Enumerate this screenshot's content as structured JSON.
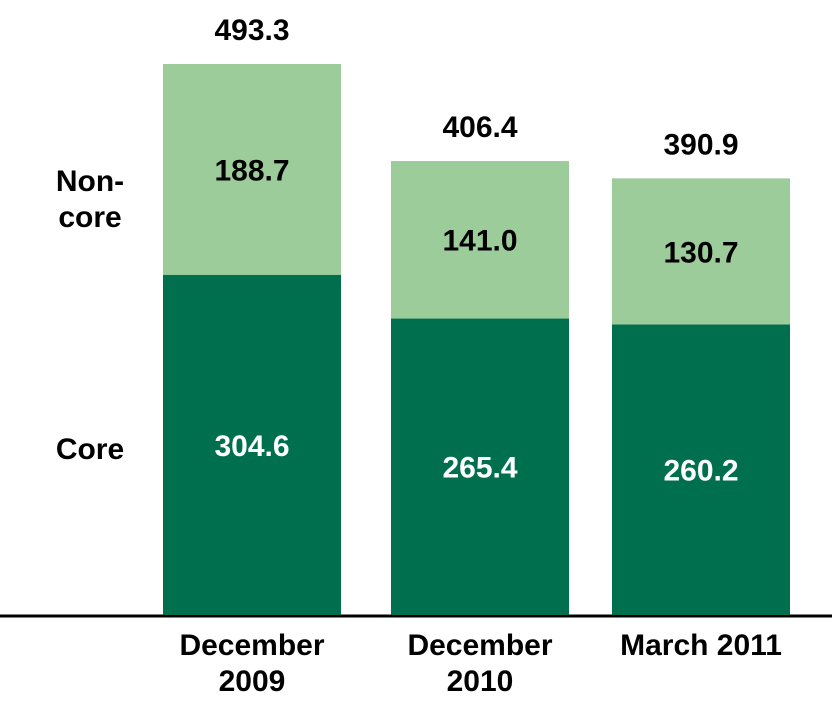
{
  "chart_data": {
    "type": "stacked_bar",
    "categories": [
      "December 2009",
      "December 2010",
      "March 2011"
    ],
    "series": [
      {
        "name": "Core",
        "color": "#006f4e",
        "values": [
          304.6,
          265.4,
          260.2
        ]
      },
      {
        "name": "Non-core",
        "color": "#9ccc9a",
        "values": [
          188.7,
          141.0,
          130.7
        ],
        "value_labels": [
          "188.7",
          "141.0",
          "130.7"
        ]
      }
    ],
    "totals": [
      493.3,
      406.4,
      390.9
    ]
  }
}
